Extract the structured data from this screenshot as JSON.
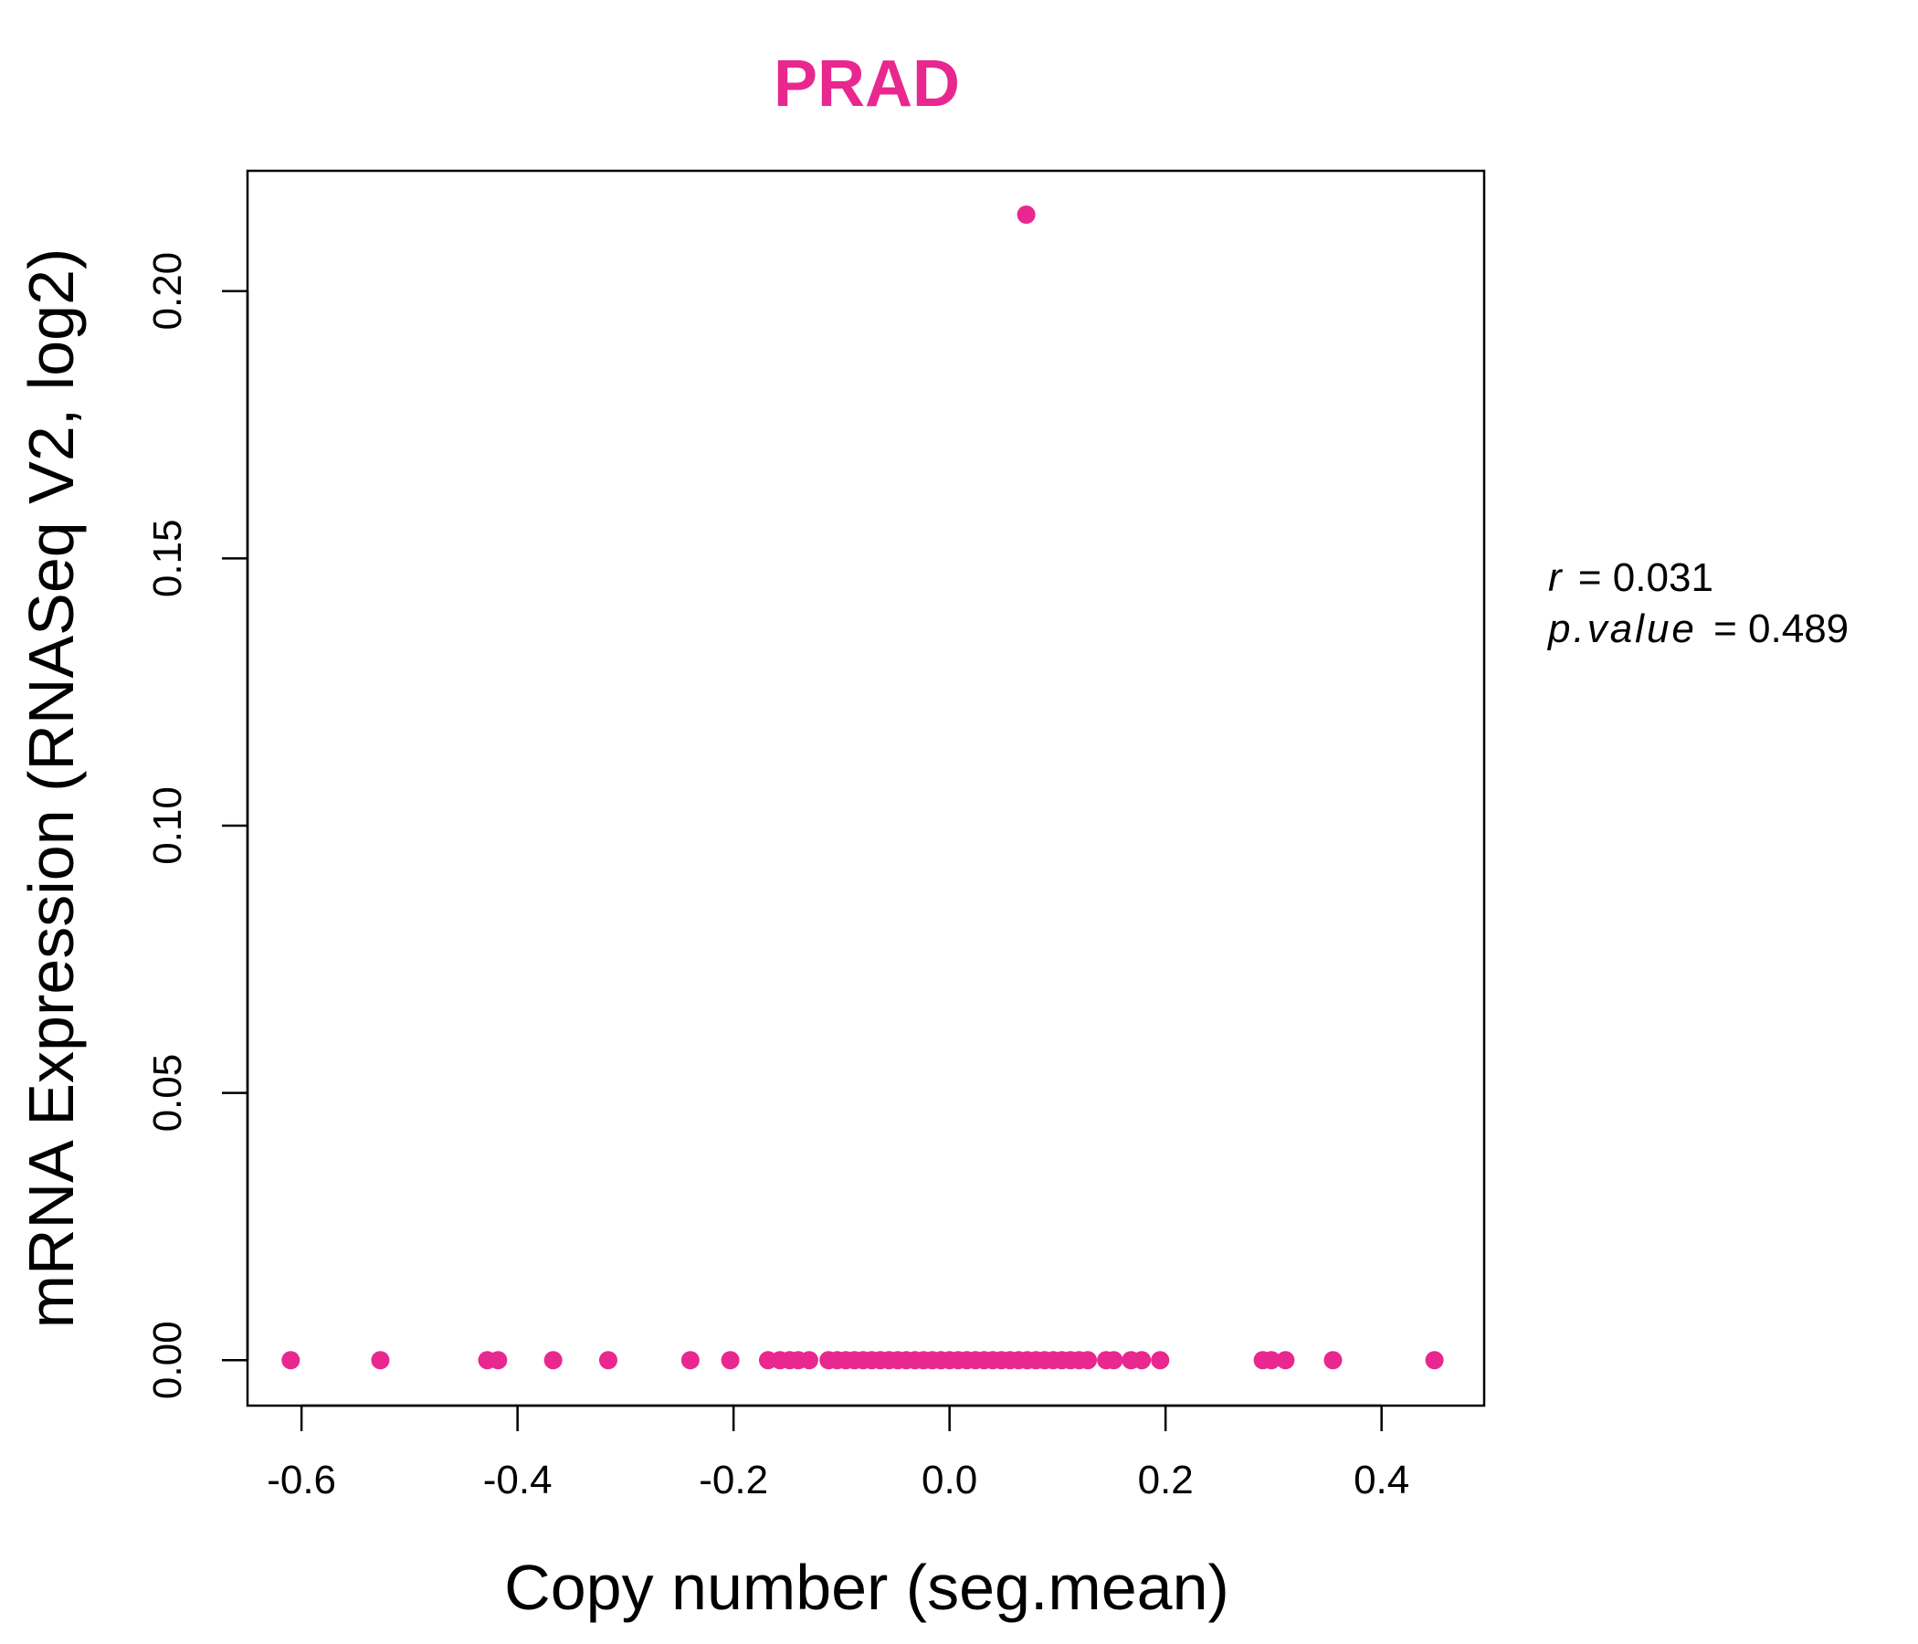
{
  "chart_data": {
    "type": "scatter",
    "title": "PRAD",
    "title_color": "#e8288f",
    "point_color": "#e8288f",
    "xlabel": "Copy number (seg.mean)",
    "ylabel": "mRNA Expression (RNASeq V2, log2)",
    "xlim": [
      -0.65,
      0.495
    ],
    "ylim": [
      -0.0085,
      0.2225
    ],
    "x_ticks": [
      -0.6,
      -0.4,
      -0.2,
      0.0,
      0.2,
      0.4
    ],
    "x_tick_labels": [
      "-0.6",
      "-0.4",
      "-0.2",
      "0.0",
      "0.2",
      "0.4"
    ],
    "y_ticks": [
      0.0,
      0.05,
      0.1,
      0.15,
      0.2
    ],
    "y_tick_labels": [
      "0.00",
      "0.05",
      "0.10",
      "0.15",
      "0.20"
    ],
    "points": [
      {
        "x": -0.61,
        "y": 0
      },
      {
        "x": -0.527,
        "y": 0
      },
      {
        "x": -0.428,
        "y": 0
      },
      {
        "x": -0.418,
        "y": 0
      },
      {
        "x": -0.367,
        "y": 0
      },
      {
        "x": -0.316,
        "y": 0
      },
      {
        "x": -0.24,
        "y": 0
      },
      {
        "x": -0.203,
        "y": 0
      },
      {
        "x": -0.168,
        "y": 0
      },
      {
        "x": -0.157,
        "y": 0
      },
      {
        "x": -0.148,
        "y": 0
      },
      {
        "x": -0.14,
        "y": 0
      },
      {
        "x": -0.13,
        "y": 0
      },
      {
        "x": -0.112,
        "y": 0
      },
      {
        "x": -0.104,
        "y": 0
      },
      {
        "x": -0.096,
        "y": 0
      },
      {
        "x": -0.088,
        "y": 0
      },
      {
        "x": -0.08,
        "y": 0
      },
      {
        "x": -0.072,
        "y": 0
      },
      {
        "x": -0.064,
        "y": 0
      },
      {
        "x": -0.056,
        "y": 0
      },
      {
        "x": -0.048,
        "y": 0
      },
      {
        "x": -0.04,
        "y": 0
      },
      {
        "x": -0.032,
        "y": 0
      },
      {
        "x": -0.024,
        "y": 0
      },
      {
        "x": -0.016,
        "y": 0
      },
      {
        "x": -0.008,
        "y": 0
      },
      {
        "x": 0.0,
        "y": 0
      },
      {
        "x": 0.008,
        "y": 0
      },
      {
        "x": 0.016,
        "y": 0
      },
      {
        "x": 0.024,
        "y": 0
      },
      {
        "x": 0.032,
        "y": 0
      },
      {
        "x": 0.04,
        "y": 0
      },
      {
        "x": 0.048,
        "y": 0
      },
      {
        "x": 0.056,
        "y": 0
      },
      {
        "x": 0.064,
        "y": 0
      },
      {
        "x": 0.072,
        "y": 0
      },
      {
        "x": 0.08,
        "y": 0
      },
      {
        "x": 0.088,
        "y": 0
      },
      {
        "x": 0.096,
        "y": 0
      },
      {
        "x": 0.104,
        "y": 0
      },
      {
        "x": 0.112,
        "y": 0
      },
      {
        "x": 0.12,
        "y": 0
      },
      {
        "x": 0.128,
        "y": 0
      },
      {
        "x": 0.145,
        "y": 0
      },
      {
        "x": 0.152,
        "y": 0
      },
      {
        "x": 0.168,
        "y": 0
      },
      {
        "x": 0.178,
        "y": 0
      },
      {
        "x": 0.195,
        "y": 0
      },
      {
        "x": 0.29,
        "y": 0
      },
      {
        "x": 0.298,
        "y": 0
      },
      {
        "x": 0.311,
        "y": 0
      },
      {
        "x": 0.355,
        "y": 0
      },
      {
        "x": 0.449,
        "y": 0
      },
      {
        "x": 0.071,
        "y": 0.2143
      }
    ]
  },
  "stats": {
    "r_label": "r",
    "r_value": "= 0.031",
    "p_label": "p.value",
    "p_value": "= 0.489"
  }
}
